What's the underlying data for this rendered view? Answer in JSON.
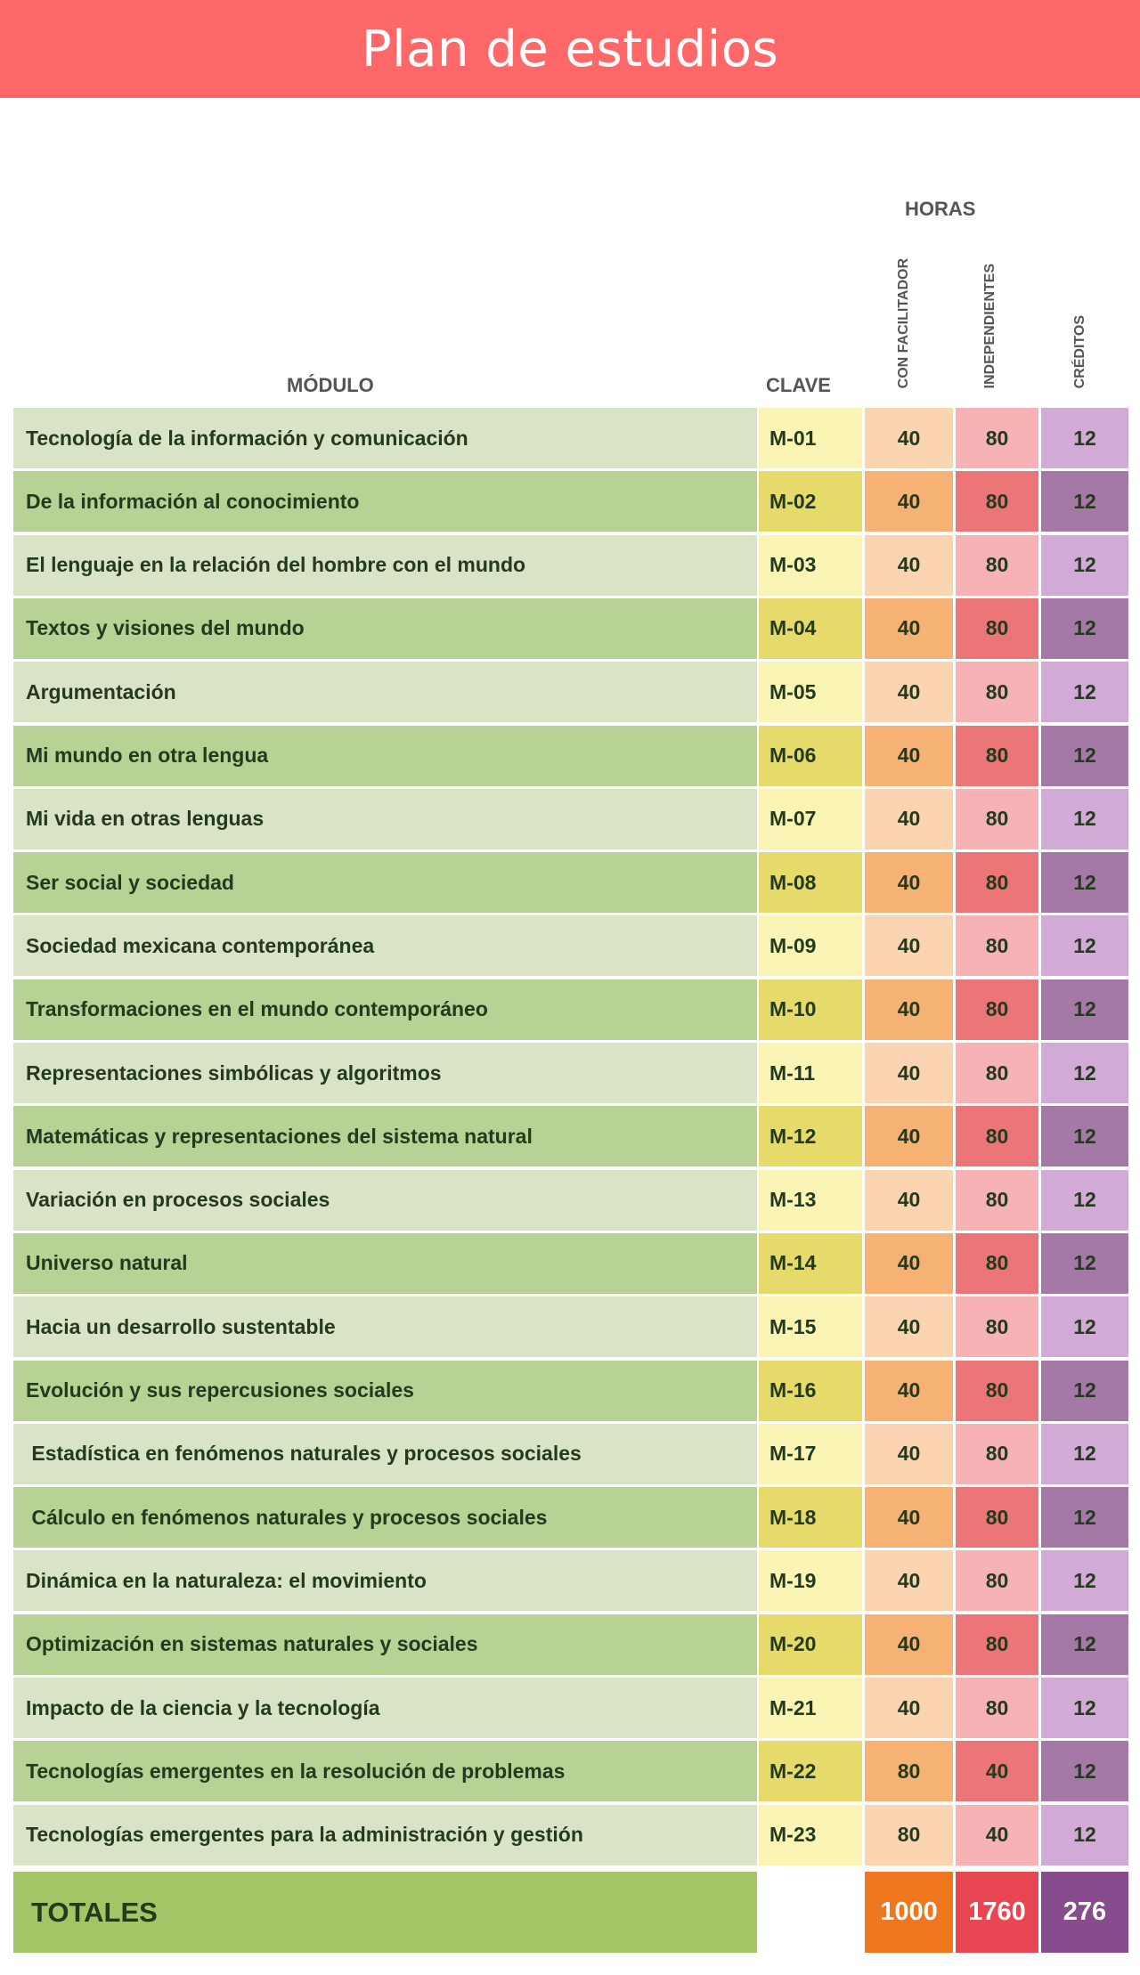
{
  "title": "Plan de estudios",
  "headers": {
    "horas": "HORAS",
    "modulo": "MÓDULO",
    "clave": "CLAVE",
    "con_facilitador": "CON FACILITADOR",
    "independientes": "INDEPENDIENTES",
    "creditos": "CRÉDITOS"
  },
  "rows": [
    {
      "modulo": "Tecnología de la información y comunicación",
      "clave": "M-01",
      "facilitador": "40",
      "independientes": "80",
      "creditos": "12"
    },
    {
      "modulo": "De la información al conocimiento",
      "clave": "M-02",
      "facilitador": "40",
      "independientes": "80",
      "creditos": "12"
    },
    {
      "modulo": "El lenguaje en la relación del hombre con el mundo",
      "clave": "M-03",
      "facilitador": "40",
      "independientes": "80",
      "creditos": "12"
    },
    {
      "modulo": "Textos y visiones del mundo",
      "clave": "M-04",
      "facilitador": "40",
      "independientes": "80",
      "creditos": "12"
    },
    {
      "modulo": "Argumentación",
      "clave": "M-05",
      "facilitador": "40",
      "independientes": "80",
      "creditos": "12"
    },
    {
      "modulo": "Mi mundo en otra lengua",
      "clave": "M-06",
      "facilitador": "40",
      "independientes": "80",
      "creditos": "12"
    },
    {
      "modulo": "Mi vida en otras lenguas",
      "clave": "M-07",
      "facilitador": "40",
      "independientes": "80",
      "creditos": "12"
    },
    {
      "modulo": "Ser social y sociedad",
      "clave": "M-08",
      "facilitador": "40",
      "independientes": "80",
      "creditos": "12"
    },
    {
      "modulo": "Sociedad mexicana contemporánea",
      "clave": "M-09",
      "facilitador": "40",
      "independientes": "80",
      "creditos": "12"
    },
    {
      "modulo": "Transformaciones en el mundo contemporáneo",
      "clave": "M-10",
      "facilitador": "40",
      "independientes": "80",
      "creditos": "12"
    },
    {
      "modulo": "Representaciones simbólicas y algoritmos",
      "clave": "M-11",
      "facilitador": "40",
      "independientes": "80",
      "creditos": "12"
    },
    {
      "modulo": "Matemáticas y representaciones del sistema natural",
      "clave": "M-12",
      "facilitador": "40",
      "independientes": "80",
      "creditos": "12"
    },
    {
      "modulo": "Variación en procesos sociales",
      "clave": "M-13",
      "facilitador": "40",
      "independientes": "80",
      "creditos": "12"
    },
    {
      "modulo": "Universo natural",
      "clave": "M-14",
      "facilitador": "40",
      "independientes": "80",
      "creditos": "12"
    },
    {
      "modulo": "Hacia un desarrollo sustentable",
      "clave": "M-15",
      "facilitador": "40",
      "independientes": "80",
      "creditos": "12"
    },
    {
      "modulo": "Evolución y sus repercusiones sociales",
      "clave": "M-16",
      "facilitador": "40",
      "independientes": "80",
      "creditos": "12"
    },
    {
      "modulo": " Estadística en fenómenos naturales y procesos sociales",
      "clave": "M-17",
      "facilitador": "40",
      "independientes": "80",
      "creditos": "12"
    },
    {
      "modulo": " Cálculo en fenómenos naturales y procesos sociales",
      "clave": "M-18",
      "facilitador": "40",
      "independientes": "80",
      "creditos": "12"
    },
    {
      "modulo": "Dinámica en la naturaleza: el movimiento",
      "clave": "M-19",
      "facilitador": "40",
      "independientes": "80",
      "creditos": "12"
    },
    {
      "modulo": "Optimización en sistemas naturales y sociales",
      "clave": "M-20",
      "facilitador": "40",
      "independientes": "80",
      "creditos": "12"
    },
    {
      "modulo": "Impacto de la ciencia y la tecnología",
      "clave": "M-21",
      "facilitador": "40",
      "independientes": "80",
      "creditos": "12"
    },
    {
      "modulo": "Tecnologías emergentes en la resolución de problemas",
      "clave": "M-22",
      "facilitador": "80",
      "independientes": "40",
      "creditos": "12"
    },
    {
      "modulo": "Tecnologías emergentes para la administración y gestión",
      "clave": "M-23",
      "facilitador": "80",
      "independientes": "40",
      "creditos": "12"
    }
  ],
  "totals": {
    "label": "TOTALES",
    "facilitador": "1000",
    "independientes": "1760",
    "creditos": "276"
  },
  "colors": {
    "banner": "#ff6868",
    "total_modulo": "#a3c566",
    "total_facilitador": "#ef771d",
    "total_independientes": "#e84652",
    "total_creditos": "#874c8e"
  }
}
